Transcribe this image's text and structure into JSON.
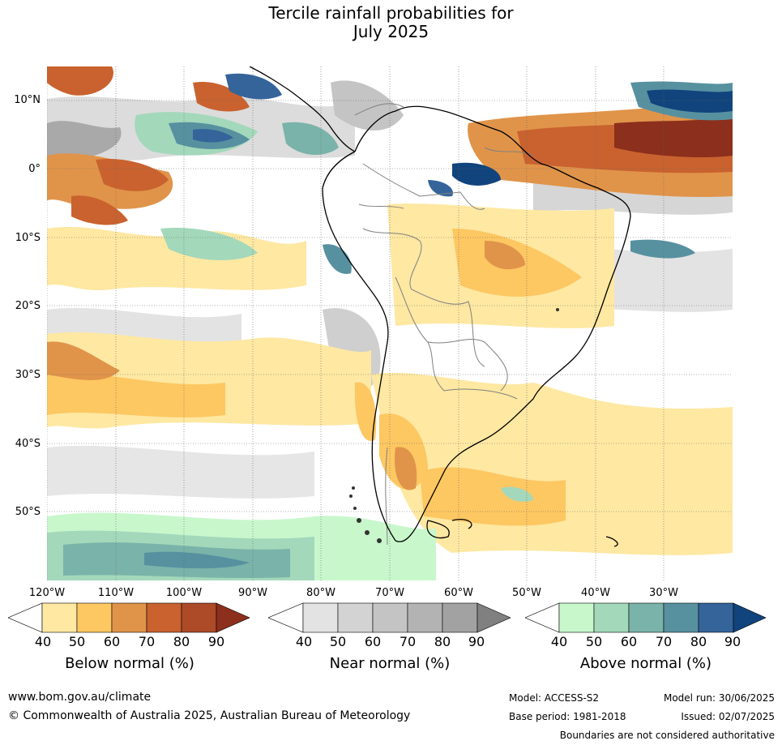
{
  "title": {
    "line1": "Tercile rainfall probabilities for",
    "line2": "July 2025"
  },
  "map": {
    "lat_labels": [
      "10°N",
      "0°",
      "10°S",
      "20°S",
      "30°S",
      "40°S",
      "50°S"
    ],
    "lon_labels": [
      "120°W",
      "110°W",
      "100°W",
      "90°W",
      "80°W",
      "70°W",
      "60°W",
      "50°W",
      "40°W",
      "30°W"
    ],
    "colors": {
      "ocean_bg": "#ffffff",
      "coast": "#000000",
      "border": "#808080",
      "grid": "#666666"
    }
  },
  "colorbars": [
    {
      "name": "below",
      "label": "Below normal (%)",
      "ticks": [
        "40",
        "50",
        "60",
        "70",
        "80",
        "90"
      ],
      "colors": [
        "#ffffff",
        "#fee8a2",
        "#fdc762",
        "#e0944a",
        "#c9622f",
        "#ad4a27",
        "#8c2f1c"
      ]
    },
    {
      "name": "near",
      "label": "Near normal (%)",
      "ticks": [
        "40",
        "50",
        "60",
        "70",
        "80",
        "90"
      ],
      "colors": [
        "#ffffff",
        "#e3e3e3",
        "#d3d3d3",
        "#c4c4c4",
        "#b3b3b3",
        "#a2a2a2",
        "#808080"
      ]
    },
    {
      "name": "above",
      "label": "Above normal (%)",
      "ticks": [
        "40",
        "50",
        "60",
        "70",
        "80",
        "90"
      ],
      "colors": [
        "#ffffff",
        "#c8f7cc",
        "#a3d8bb",
        "#7ab3a9",
        "#5791a0",
        "#34649a",
        "#11447c"
      ]
    }
  ],
  "footer": {
    "website": "www.bom.gov.au/climate",
    "copyright": "© Commonwealth of Australia 2025, Australian Bureau of Meteorology",
    "model": "Model: ACCESS-S2",
    "base_period": "Base period: 1981-2018",
    "model_run": "Model run: 30/06/2025",
    "issued": "Issued: 02/07/2025",
    "disclaimer": "Boundaries are not considered authoritative"
  }
}
